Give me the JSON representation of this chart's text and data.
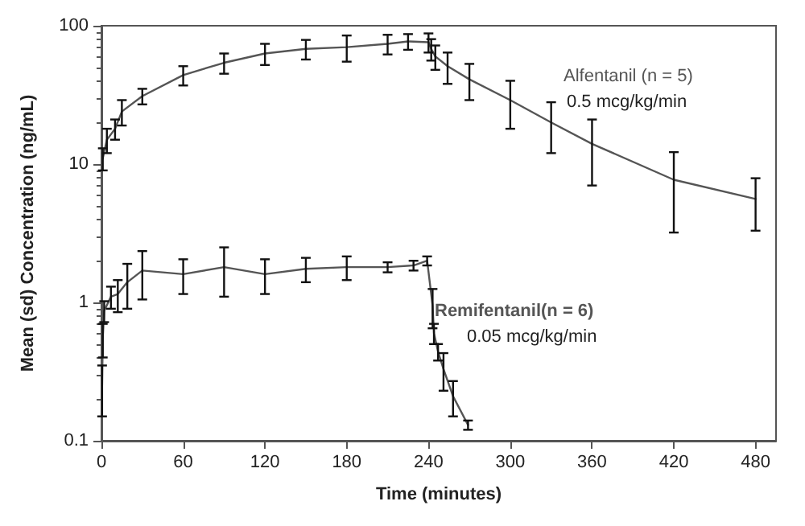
{
  "chart_data": {
    "type": "line",
    "xlabel": "Time (minutes)",
    "ylabel": "Mean (sd) Concentration (ng/mL)",
    "log": "y",
    "grid": false,
    "legend": false,
    "marker": "none",
    "line_style": "solid",
    "xlim": [
      0,
      495
    ],
    "xticks": [
      0,
      60,
      120,
      180,
      240,
      300,
      360,
      420,
      480
    ],
    "ylim": [
      0.1,
      100
    ],
    "yticks": [
      0.1,
      1,
      10,
      100
    ],
    "annotations": [
      "0.5 mcg/kg/min",
      "0.05 mcg/kg/min"
    ],
    "series": [
      {
        "name": "Alfentanil (n = 5)",
        "color": "#555555",
        "x": [
          1,
          4,
          10,
          15,
          30,
          60,
          90,
          120,
          150,
          180,
          210,
          225,
          240,
          242,
          245,
          254,
          270,
          300,
          330,
          360,
          420,
          480
        ],
        "values": [
          11,
          15,
          18,
          24,
          31,
          44,
          54,
          63,
          68,
          70,
          74,
          77,
          76,
          68,
          60,
          51,
          41,
          29,
          20,
          14,
          7.7,
          5.6
        ],
        "errors": [
          2,
          3,
          3,
          5,
          4,
          7,
          9,
          11,
          11,
          15,
          12,
          10,
          12,
          12,
          12,
          13,
          12,
          11,
          8,
          7,
          4.5,
          2.3
        ]
      },
      {
        "name": "Remifentanil(n = 6)",
        "color": "#555555",
        "x": [
          0.5,
          1,
          2,
          7,
          12,
          19,
          30,
          60,
          90,
          120,
          150,
          180,
          210,
          229,
          239,
          243,
          244,
          247,
          251,
          258,
          269
        ],
        "values": [
          0.25,
          0.55,
          0.87,
          1.1,
          1.15,
          1.4,
          1.7,
          1.6,
          1.8,
          1.6,
          1.75,
          1.8,
          1.8,
          1.85,
          2,
          0.95,
          0.6,
          0.44,
          0.33,
          0.21,
          0.13
        ],
        "errors": [
          0.1,
          0.15,
          0.15,
          0.2,
          0.3,
          0.5,
          0.65,
          0.45,
          0.7,
          0.45,
          0.35,
          0.35,
          0.15,
          0.15,
          0.15,
          0.3,
          0.1,
          0.06,
          0.1,
          0.06,
          0.01
        ]
      }
    ]
  }
}
